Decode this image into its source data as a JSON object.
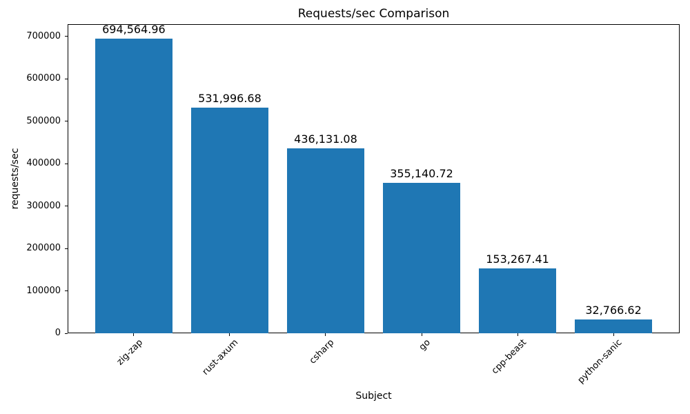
{
  "chart_data": {
    "type": "bar",
    "title": "Requests/sec Comparison",
    "xlabel": "Subject",
    "ylabel": "requests/sec",
    "categories": [
      "zig-zap",
      "rust-axum",
      "csharp",
      "go",
      "cpp-beast",
      "python-sanic"
    ],
    "values": [
      694564.96,
      531996.68,
      436131.08,
      355140.72,
      153267.41,
      32766.62
    ],
    "value_labels": [
      "694,564.96",
      "531,996.68",
      "436,131.08",
      "355,140.72",
      "153,267.41",
      "32,766.62"
    ],
    "yticks": [
      0,
      100000,
      200000,
      300000,
      400000,
      500000,
      600000,
      700000
    ],
    "ylim": [
      0,
      729293
    ],
    "xtick_rotation_deg": 45,
    "bar_color": "#1f77b4",
    "bar_width_frac": 0.8,
    "x_margin_frac": 0.05,
    "grid": false,
    "legend": null
  }
}
